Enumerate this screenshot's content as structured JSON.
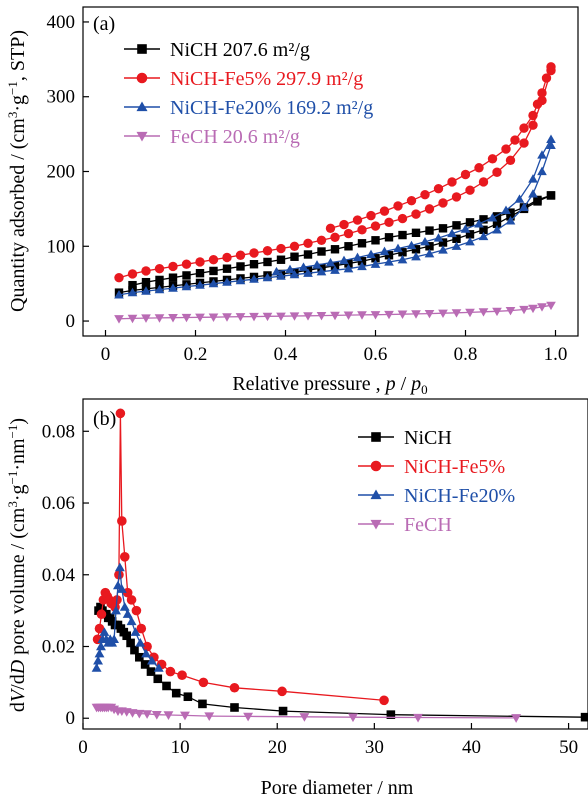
{
  "chart_data": [
    {
      "type": "line",
      "panel_label": "(a)",
      "xlabel": "Relative pressure , p / p0",
      "ylabel": "Quantity adsorbed / (cm3·g−1, STP)",
      "xlim": [
        -0.05,
        1.05
      ],
      "ylim": [
        -20,
        420
      ],
      "xticks": [
        0,
        0.2,
        0.4,
        0.6,
        0.8,
        1.0
      ],
      "xtick_labels": [
        "0",
        "0.2",
        "0.4",
        "0.6",
        "0.8",
        "1.0"
      ],
      "yticks": [
        0,
        100,
        200,
        300,
        400
      ],
      "ytick_labels": [
        "0",
        "100",
        "200",
        "300",
        "400"
      ],
      "legend_position": "top-left",
      "series": [
        {
          "name": "NiCH 207.6 m²/g",
          "color": "#000000",
          "marker": "square",
          "adsorption": {
            "x": [
              0.03,
              0.06,
              0.09,
              0.12,
              0.15,
              0.18,
              0.21,
              0.24,
              0.27,
              0.3,
              0.33,
              0.36,
              0.39,
              0.42,
              0.45,
              0.48,
              0.51,
              0.54,
              0.57,
              0.6,
              0.63,
              0.66,
              0.69,
              0.72,
              0.75,
              0.78,
              0.81,
              0.84,
              0.87,
              0.9,
              0.93,
              0.96,
              0.99
            ],
            "y": [
              38,
              41,
              43,
              45,
              47,
              49,
              51,
              53,
              55,
              57,
              59,
              61,
              63,
              65,
              68,
              71,
              74,
              77,
              80,
              84,
              88,
              92,
              96,
              100,
              105,
              110,
              116,
              122,
              130,
              140,
              150,
              160,
              168
            ]
          },
          "desorption": {
            "x": [
              0.99,
              0.96,
              0.93,
              0.9,
              0.87,
              0.84,
              0.81,
              0.78,
              0.75,
              0.72,
              0.69,
              0.66,
              0.63,
              0.6,
              0.57,
              0.54,
              0.51,
              0.48,
              0.45,
              0.42,
              0.39,
              0.36,
              0.33,
              0.3,
              0.27,
              0.24,
              0.21,
              0.18,
              0.15,
              0.12,
              0.09,
              0.06
            ],
            "y": [
              168,
              162,
              152,
              145,
              140,
              136,
              132,
              128,
              124,
              121,
              118,
              115,
              112,
              108,
              104,
              100,
              96,
              93,
              89,
              86,
              82,
              79,
              76,
              73,
              70,
              67,
              64,
              61,
              58,
              55,
              52,
              48
            ]
          }
        },
        {
          "name": "NiCH-Fe5% 297.9 m²/g",
          "color": "#e8191f",
          "marker": "circle",
          "adsorption": {
            "x": [
              0.03,
              0.06,
              0.09,
              0.12,
              0.15,
              0.18,
              0.21,
              0.24,
              0.27,
              0.3,
              0.33,
              0.36,
              0.39,
              0.42,
              0.45,
              0.48,
              0.51,
              0.54,
              0.57,
              0.6,
              0.63,
              0.66,
              0.69,
              0.72,
              0.75,
              0.78,
              0.81,
              0.84,
              0.87,
              0.9,
              0.93,
              0.95,
              0.97,
              0.99
            ],
            "y": [
              58,
              63,
              67,
              70,
              73,
              76,
              79,
              82,
              85,
              88,
              91,
              94,
              97,
              100,
              104,
              108,
              112,
              117,
              122,
              127,
              132,
              137,
              143,
              150,
              158,
              166,
              175,
              186,
              199,
              215,
              238,
              262,
              295,
              335
            ]
          },
          "desorption": {
            "x": [
              0.99,
              0.98,
              0.97,
              0.96,
              0.95,
              0.93,
              0.91,
              0.89,
              0.86,
              0.83,
              0.8,
              0.77,
              0.74,
              0.71,
              0.68,
              0.65,
              0.62,
              0.59,
              0.56,
              0.53,
              0.5
            ],
            "y": [
              340,
              325,
              305,
              290,
              275,
              258,
              242,
              230,
              217,
              205,
              196,
              186,
              177,
              169,
              161,
              154,
              147,
              141,
              135,
              129,
              124
            ]
          }
        },
        {
          "name": "NiCH-Fe20% 169.2 m²/g",
          "color": "#1f4fa8",
          "marker": "triangle-up",
          "adsorption": {
            "x": [
              0.03,
              0.06,
              0.09,
              0.12,
              0.15,
              0.18,
              0.21,
              0.24,
              0.27,
              0.3,
              0.33,
              0.36,
              0.39,
              0.42,
              0.45,
              0.48,
              0.51,
              0.54,
              0.57,
              0.6,
              0.63,
              0.66,
              0.69,
              0.72,
              0.75,
              0.78,
              0.81,
              0.84,
              0.87,
              0.9,
              0.93,
              0.95,
              0.97,
              0.99
            ],
            "y": [
              35,
              38,
              40,
              42,
              44,
              46,
              48,
              50,
              52,
              54,
              56,
              58,
              60,
              62,
              64,
              66,
              68,
              70,
              73,
              76,
              79,
              82,
              86,
              90,
              95,
              100,
              106,
              113,
              122,
              134,
              152,
              170,
              200,
              235
            ]
          },
          "desorption": {
            "x": [
              0.99,
              0.97,
              0.95,
              0.92,
              0.89,
              0.86,
              0.83,
              0.8,
              0.77,
              0.74,
              0.71,
              0.68,
              0.65,
              0.62,
              0.59,
              0.56,
              0.53,
              0.5,
              0.47,
              0.44,
              0.41,
              0.38
            ],
            "y": [
              243,
              222,
              190,
              163,
              148,
              138,
              130,
              123,
              117,
              111,
              106,
              101,
              97,
              93,
              89,
              85,
              81,
              78,
              75,
              72,
              69,
              66
            ]
          }
        },
        {
          "name": "FeCH 20.6 m²/g",
          "color": "#b96bb4",
          "marker": "triangle-down",
          "adsorption": {
            "x": [
              0.03,
              0.06,
              0.09,
              0.12,
              0.15,
              0.18,
              0.21,
              0.24,
              0.27,
              0.3,
              0.33,
              0.36,
              0.39,
              0.42,
              0.45,
              0.48,
              0.51,
              0.54,
              0.57,
              0.6,
              0.63,
              0.66,
              0.69,
              0.72,
              0.75,
              0.78,
              0.81,
              0.84,
              0.87,
              0.9,
              0.93,
              0.95,
              0.97,
              0.99
            ],
            "y": [
              3,
              3.5,
              4,
              4.2,
              4.5,
              4.8,
              5,
              5.2,
              5.5,
              5.8,
              6,
              6.3,
              6.5,
              6.8,
              7,
              7.3,
              7.6,
              7.9,
              8.2,
              8.5,
              8.8,
              9.2,
              9.6,
              10,
              10.5,
              11,
              11.6,
              12.3,
              13,
              14,
              15.5,
              17,
              19,
              21
            ]
          },
          "desorption": {
            "x": [],
            "y": []
          }
        }
      ]
    },
    {
      "type": "line",
      "panel_label": "(b)",
      "xlabel": "Pore diameter / nm",
      "ylabel": "dV/dD pore volume / (cm3·g−1·nm−1)",
      "xlim": [
        0,
        52
      ],
      "ylim": [
        -0.003,
        0.089
      ],
      "xticks": [
        0,
        10,
        20,
        30,
        40,
        50
      ],
      "xtick_labels": [
        "0",
        "10",
        "20",
        "30",
        "40",
        "50"
      ],
      "yticks": [
        0,
        0.02,
        0.04,
        0.06,
        0.08
      ],
      "ytick_labels": [
        "0",
        "0.02",
        "0.04",
        "0.06",
        "0.08"
      ],
      "legend_position": "top-right",
      "series": [
        {
          "name": "NiCH",
          "color": "#000000",
          "marker": "square",
          "x": [
            1.6,
            1.8,
            2.0,
            2.2,
            2.4,
            2.6,
            2.8,
            3.0,
            3.3,
            3.6,
            3.9,
            4.2,
            4.5,
            4.9,
            5.3,
            5.8,
            6.4,
            7.0,
            7.7,
            8.6,
            9.6,
            10.8,
            12.3,
            15.6,
            20.6,
            31.7,
            51.7
          ],
          "y": [
            0.03,
            0.031,
            0.03,
            0.029,
            0.029,
            0.028,
            0.028,
            0.027,
            0.026,
            0.026,
            0.025,
            0.024,
            0.023,
            0.021,
            0.019,
            0.017,
            0.015,
            0.013,
            0.011,
            0.009,
            0.007,
            0.006,
            0.004,
            0.003,
            0.002,
            0.001,
            0.0003
          ]
        },
        {
          "name": "NiCH-Fe5%",
          "color": "#e8191f",
          "marker": "circle",
          "x": [
            1.5,
            1.7,
            1.9,
            2.1,
            2.3,
            2.5,
            2.7,
            2.9,
            3.1,
            3.3,
            3.5,
            3.7,
            3.85,
            4.0,
            4.3,
            4.6,
            5.0,
            5.5,
            6.0,
            6.6,
            7.3,
            8.1,
            9.0,
            10.2,
            12.4,
            15.6,
            20.5,
            31.0
          ],
          "y": [
            0.022,
            0.025,
            0.029,
            0.033,
            0.035,
            0.034,
            0.033,
            0.032,
            0.032,
            0.031,
            0.033,
            0.04,
            0.085,
            0.055,
            0.045,
            0.035,
            0.033,
            0.03,
            0.025,
            0.02,
            0.017,
            0.015,
            0.013,
            0.012,
            0.01,
            0.0085,
            0.0075,
            0.005
          ]
        },
        {
          "name": "NiCH-Fe20%",
          "color": "#1f4fa8",
          "marker": "triangle-up",
          "x": [
            1.4,
            1.55,
            1.7,
            1.85,
            2.0,
            2.2,
            2.4,
            2.6,
            2.8,
            3.0,
            3.2,
            3.4,
            3.6,
            3.8,
            4.0,
            4.3,
            4.6,
            5.0,
            5.4,
            5.9,
            6.5,
            7.1,
            7.8
          ],
          "y": [
            0.014,
            0.016,
            0.018,
            0.02,
            0.022,
            0.024,
            0.022,
            0.021,
            0.022,
            0.021,
            0.022,
            0.03,
            0.037,
            0.042,
            0.036,
            0.031,
            0.029,
            0.027,
            0.024,
            0.021,
            0.018,
            0.016,
            0.014
          ]
        },
        {
          "name": "FeCH",
          "color": "#b96bb4",
          "marker": "triangle-down",
          "x": [
            1.4,
            1.6,
            1.8,
            2.0,
            2.2,
            2.4,
            2.6,
            2.9,
            3.2,
            3.6,
            4.0,
            4.5,
            5.1,
            5.8,
            6.6,
            7.6,
            8.8,
            10.5,
            13.0,
            17.0,
            22.8,
            27.8,
            34.5,
            44.6
          ],
          "y": [
            0.003,
            0.003,
            0.003,
            0.003,
            0.003,
            0.003,
            0.003,
            0.003,
            0.0025,
            0.002,
            0.002,
            0.0018,
            0.0015,
            0.0013,
            0.0012,
            0.001,
            0.0009,
            0.0008,
            0.0006,
            0.0005,
            0.0004,
            0.0003,
            0.0002,
            0.0001
          ]
        }
      ]
    }
  ]
}
